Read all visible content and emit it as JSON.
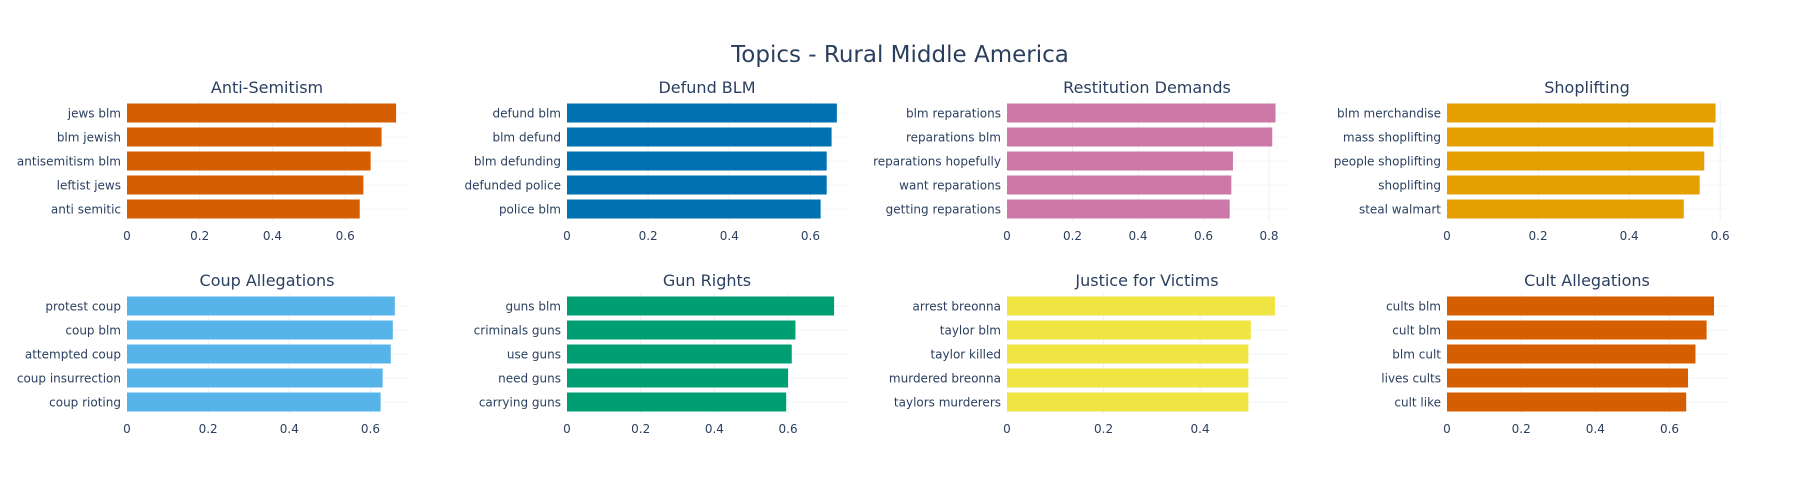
{
  "title": "Topics - Rural Middle America",
  "chart_data": [
    {
      "type": "bar",
      "orientation": "horizontal",
      "title": "Anti-Semitism",
      "color": "#D55E00",
      "categories": [
        "jews blm",
        "blm jewish",
        "antisemitism blm",
        "leftist jews",
        "anti semitic"
      ],
      "values": [
        0.74,
        0.7,
        0.67,
        0.65,
        0.64
      ],
      "xlim": [
        0,
        0.77
      ],
      "ticks": [
        0,
        0.2,
        0.4,
        0.6
      ],
      "tick_labels": [
        "0",
        "0.2",
        "0.4",
        "0.6"
      ]
    },
    {
      "type": "bar",
      "orientation": "horizontal",
      "title": "Defund BLM",
      "color": "#0072B2",
      "categories": [
        "defund blm",
        "blm defund",
        "blm defunding",
        "defunded police",
        "police blm"
      ],
      "values": [
        0.665,
        0.652,
        0.64,
        0.64,
        0.625
      ],
      "xlim": [
        0,
        0.69
      ],
      "ticks": [
        0,
        0.2,
        0.4,
        0.6
      ],
      "tick_labels": [
        "0",
        "0.2",
        "0.4",
        "0.6"
      ]
    },
    {
      "type": "bar",
      "orientation": "horizontal",
      "title": "Restitution Demands",
      "color": "#CC79A7",
      "categories": [
        "blm reparations",
        "reparations blm",
        "reparations hopefully",
        "want reparations",
        "getting reparations"
      ],
      "values": [
        0.82,
        0.81,
        0.69,
        0.685,
        0.68
      ],
      "xlim": [
        0,
        0.855
      ],
      "ticks": [
        0,
        0.2,
        0.4,
        0.6,
        0.8
      ],
      "tick_labels": [
        "0",
        "0.2",
        "0.4",
        "0.6",
        "0.8"
      ]
    },
    {
      "type": "bar",
      "orientation": "horizontal",
      "title": "Shoplifting",
      "color": "#E69F00",
      "categories": [
        "blm merchandise",
        "mass shoplifting",
        "people shoplifting",
        "shoplifting",
        "steal walmart"
      ],
      "values": [
        0.59,
        0.585,
        0.565,
        0.555,
        0.52
      ],
      "xlim": [
        0,
        0.615
      ],
      "ticks": [
        0,
        0.2,
        0.4,
        0.6
      ],
      "tick_labels": [
        "0",
        "0.2",
        "0.4",
        "0.6"
      ]
    },
    {
      "type": "bar",
      "orientation": "horizontal",
      "title": "Coup Allegations",
      "color": "#56B4E9",
      "categories": [
        "protest coup",
        "coup blm",
        "attempted coup",
        "coup insurrection",
        "coup rioting"
      ],
      "values": [
        0.66,
        0.655,
        0.65,
        0.63,
        0.625
      ],
      "xlim": [
        0,
        0.69
      ],
      "ticks": [
        0,
        0.2,
        0.4,
        0.6
      ],
      "tick_labels": [
        "0",
        "0.2",
        "0.4",
        "0.6"
      ]
    },
    {
      "type": "bar",
      "orientation": "horizontal",
      "title": "Gun Rights",
      "color": "#009E73",
      "categories": [
        "guns blm",
        "criminals guns",
        "use guns",
        "need guns",
        "carrying guns"
      ],
      "values": [
        0.725,
        0.62,
        0.61,
        0.6,
        0.595
      ],
      "xlim": [
        0,
        0.76
      ],
      "ticks": [
        0,
        0.2,
        0.4,
        0.6
      ],
      "tick_labels": [
        "0",
        "0.2",
        "0.4",
        "0.6"
      ]
    },
    {
      "type": "bar",
      "orientation": "horizontal",
      "title": "Justice for Victims",
      "color": "#F0E442",
      "categories": [
        "arrest breonna",
        "taylor blm",
        "taylor killed",
        "murdered breonna",
        "taylors murderers"
      ],
      "values": [
        0.555,
        0.505,
        0.5,
        0.5,
        0.5
      ],
      "xlim": [
        0,
        0.58
      ],
      "ticks": [
        0,
        0.2,
        0.4
      ],
      "tick_labels": [
        "0",
        "0.2",
        "0.4"
      ]
    },
    {
      "type": "bar",
      "orientation": "horizontal",
      "title": "Cult Allegations",
      "color": "#D55E00",
      "categories": [
        "cults blm",
        "cult blm",
        "blm cult",
        "lives cults",
        "cult like"
      ],
      "values": [
        0.72,
        0.7,
        0.67,
        0.65,
        0.645
      ],
      "xlim": [
        0,
        0.755
      ],
      "ticks": [
        0,
        0.2,
        0.4,
        0.6
      ],
      "tick_labels": [
        "0",
        "0.2",
        "0.4",
        "0.6"
      ]
    }
  ]
}
